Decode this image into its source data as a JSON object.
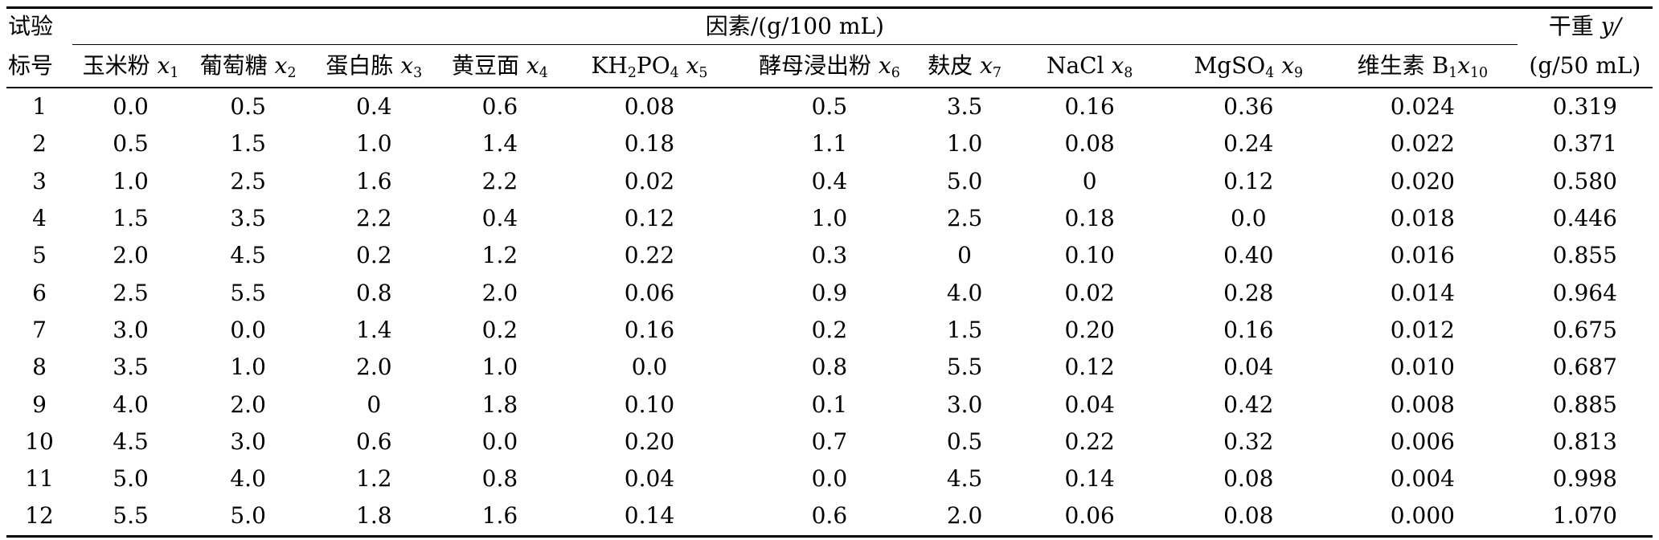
{
  "header": {
    "trial_line1": "试验",
    "trial_line2": "标号",
    "factors_label": "因素/(g/100 mL)",
    "dry_weight_line1": "干重 ",
    "dry_weight_var": "y/",
    "dry_weight_line2": "(g/50 mL)",
    "columns": [
      {
        "name": "玉米粉 ",
        "var": "x",
        "sub": "1"
      },
      {
        "name": "葡萄糖 ",
        "var": "x",
        "sub": "2"
      },
      {
        "name": "蛋白胨 ",
        "var": "x",
        "sub": "3"
      },
      {
        "name": "黄豆面 ",
        "var": "x",
        "sub": "4"
      },
      {
        "name": "KH",
        "name_sub": "2",
        "name2": "PO",
        "name_sub2": "4",
        "sep": " ",
        "var": "x",
        "sub": "5"
      },
      {
        "name": "酵母浸出粉 ",
        "var": "x",
        "sub": "6"
      },
      {
        "name": "麸皮 ",
        "var": "x",
        "sub": "7"
      },
      {
        "name": "NaCl ",
        "var": "x",
        "sub": "8"
      },
      {
        "name": "MgSO",
        "name_sub": "4",
        "sep": " ",
        "var": "x",
        "sub": "9"
      },
      {
        "name": "维生素 B",
        "name_sub": "1",
        "var": "x",
        "sub": "10"
      }
    ]
  },
  "rows": [
    [
      "1",
      "0.0",
      "0.5",
      "0.4",
      "0.6",
      "0.08",
      "0.5",
      "3.5",
      "0.16",
      "0.36",
      "0.024",
      "0.319"
    ],
    [
      "2",
      "0.5",
      "1.5",
      "1.0",
      "1.4",
      "0.18",
      "1.1",
      "1.0",
      "0.08",
      "0.24",
      "0.022",
      "0.371"
    ],
    [
      "3",
      "1.0",
      "2.5",
      "1.6",
      "2.2",
      "0.02",
      "0.4",
      "5.0",
      "0",
      "0.12",
      "0.020",
      "0.580"
    ],
    [
      "4",
      "1.5",
      "3.5",
      "2.2",
      "0.4",
      "0.12",
      "1.0",
      "2.5",
      "0.18",
      "0.0",
      "0.018",
      "0.446"
    ],
    [
      "5",
      "2.0",
      "4.5",
      "0.2",
      "1.2",
      "0.22",
      "0.3",
      "0",
      "0.10",
      "0.40",
      "0.016",
      "0.855"
    ],
    [
      "6",
      "2.5",
      "5.5",
      "0.8",
      "2.0",
      "0.06",
      "0.9",
      "4.0",
      "0.02",
      "0.28",
      "0.014",
      "0.964"
    ],
    [
      "7",
      "3.0",
      "0.0",
      "1.4",
      "0.2",
      "0.16",
      "0.2",
      "1.5",
      "0.20",
      "0.16",
      "0.012",
      "0.675"
    ],
    [
      "8",
      "3.5",
      "1.0",
      "2.0",
      "1.0",
      "0.0",
      "0.8",
      "5.5",
      "0.12",
      "0.04",
      "0.010",
      "0.687"
    ],
    [
      "9",
      "4.0",
      "2.0",
      "0",
      "1.8",
      "0.10",
      "0.1",
      "3.0",
      "0.04",
      "0.42",
      "0.008",
      "0.885"
    ],
    [
      "10",
      "4.5",
      "3.0",
      "0.6",
      "0.0",
      "0.20",
      "0.7",
      "0.5",
      "0.22",
      "0.32",
      "0.006",
      "0.813"
    ],
    [
      "11",
      "5.0",
      "4.0",
      "1.2",
      "0.8",
      "0.04",
      "0.0",
      "4.5",
      "0.14",
      "0.08",
      "0.004",
      "0.998"
    ],
    [
      "12",
      "5.5",
      "5.0",
      "1.8",
      "1.6",
      "0.14",
      "0.6",
      "2.0",
      "0.06",
      "0.08",
      "0.000",
      "1.070"
    ]
  ]
}
